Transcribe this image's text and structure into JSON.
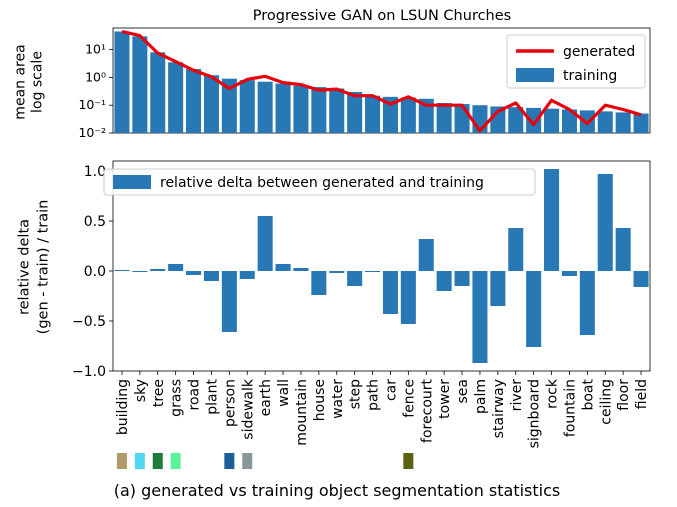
{
  "chart_data": [
    {
      "type": "bar",
      "title": "Progressive GAN on LSUN Churches",
      "ylabel_lines": [
        "mean area",
        "log scale"
      ],
      "yscale": "log",
      "ylim": [
        0.01,
        60
      ],
      "yticks": [
        {
          "value": 10,
          "label": "10¹"
        },
        {
          "value": 1,
          "label": "10⁰"
        },
        {
          "value": 0.1,
          "label": "10⁻¹"
        },
        {
          "value": 0.01,
          "label": "10⁻²"
        }
      ],
      "legend_position": "top-right",
      "categories": [
        "building",
        "sky",
        "tree",
        "grass",
        "road",
        "plant",
        "person",
        "sidewalk",
        "earth",
        "wall",
        "mountain",
        "house",
        "water",
        "step",
        "path",
        "car",
        "fence",
        "forecourt",
        "tower",
        "sea",
        "palm",
        "stairway",
        "river",
        "signboard",
        "rock",
        "fountain",
        "boat",
        "ceiling",
        "floor",
        "field"
      ],
      "series": [
        {
          "name": "training",
          "kind": "bar",
          "color": "#2878b5",
          "values": [
            45,
            30,
            8,
            3.5,
            2,
            1.2,
            0.9,
            0.8,
            0.7,
            0.6,
            0.5,
            0.45,
            0.4,
            0.3,
            0.22,
            0.2,
            0.19,
            0.17,
            0.12,
            0.11,
            0.1,
            0.09,
            0.085,
            0.08,
            0.075,
            0.07,
            0.065,
            0.06,
            0.055,
            0.05
          ]
        },
        {
          "name": "generated",
          "kind": "line",
          "color": "#e8000b",
          "values": [
            45,
            32,
            7.5,
            3.7,
            1.8,
            1.05,
            0.4,
            0.85,
            1.1,
            0.65,
            0.55,
            0.35,
            0.38,
            0.22,
            0.22,
            0.11,
            0.2,
            0.1,
            0.1,
            0.1,
            0.012,
            0.06,
            0.12,
            0.02,
            0.15,
            0.07,
            0.022,
            0.1,
            0.07,
            0.045
          ]
        }
      ]
    },
    {
      "type": "bar",
      "ylabel_lines": [
        "relative delta",
        "(gen - train) / train"
      ],
      "ylim": [
        -1.0,
        1.1
      ],
      "yticks": [
        {
          "value": 1.0,
          "label": "1.0"
        },
        {
          "value": 0.5,
          "label": "0.5"
        },
        {
          "value": 0.0,
          "label": "0.0"
        },
        {
          "value": -0.5,
          "label": "−0.5"
        },
        {
          "value": -1.0,
          "label": "−1.0"
        }
      ],
      "legend_position": "top-left",
      "categories": [
        "building",
        "sky",
        "tree",
        "grass",
        "road",
        "plant",
        "person",
        "sidewalk",
        "earth",
        "wall",
        "mountain",
        "house",
        "water",
        "step",
        "path",
        "car",
        "fence",
        "forecourt",
        "tower",
        "sea",
        "palm",
        "stairway",
        "river",
        "signboard",
        "rock",
        "fountain",
        "boat",
        "ceiling",
        "floor",
        "field"
      ],
      "series": [
        {
          "name": "relative delta between generated and training",
          "color": "#2878b5",
          "values": [
            0.01,
            0.0,
            0.02,
            0.07,
            -0.04,
            -0.1,
            -0.61,
            -0.08,
            0.55,
            0.07,
            0.03,
            -0.24,
            -0.02,
            -0.15,
            -0.01,
            -0.43,
            -0.53,
            0.32,
            -0.2,
            -0.15,
            -0.92,
            -0.35,
            0.43,
            -0.76,
            1.02,
            -0.05,
            -0.64,
            0.97,
            0.43,
            -0.16
          ]
        }
      ]
    }
  ],
  "swatches": [
    {
      "index": 0,
      "color": "#b19a6a"
    },
    {
      "index": 1,
      "color": "#4fd8ef"
    },
    {
      "index": 2,
      "color": "#1f7a3a"
    },
    {
      "index": 3,
      "color": "#5cf29a"
    },
    {
      "index": 6,
      "color": "#1b5e99"
    },
    {
      "index": 7,
      "color": "#8a969a"
    },
    {
      "index": 16,
      "color": "#5a6216"
    }
  ],
  "caption": "(a) generated vs training object segmentation statistics"
}
